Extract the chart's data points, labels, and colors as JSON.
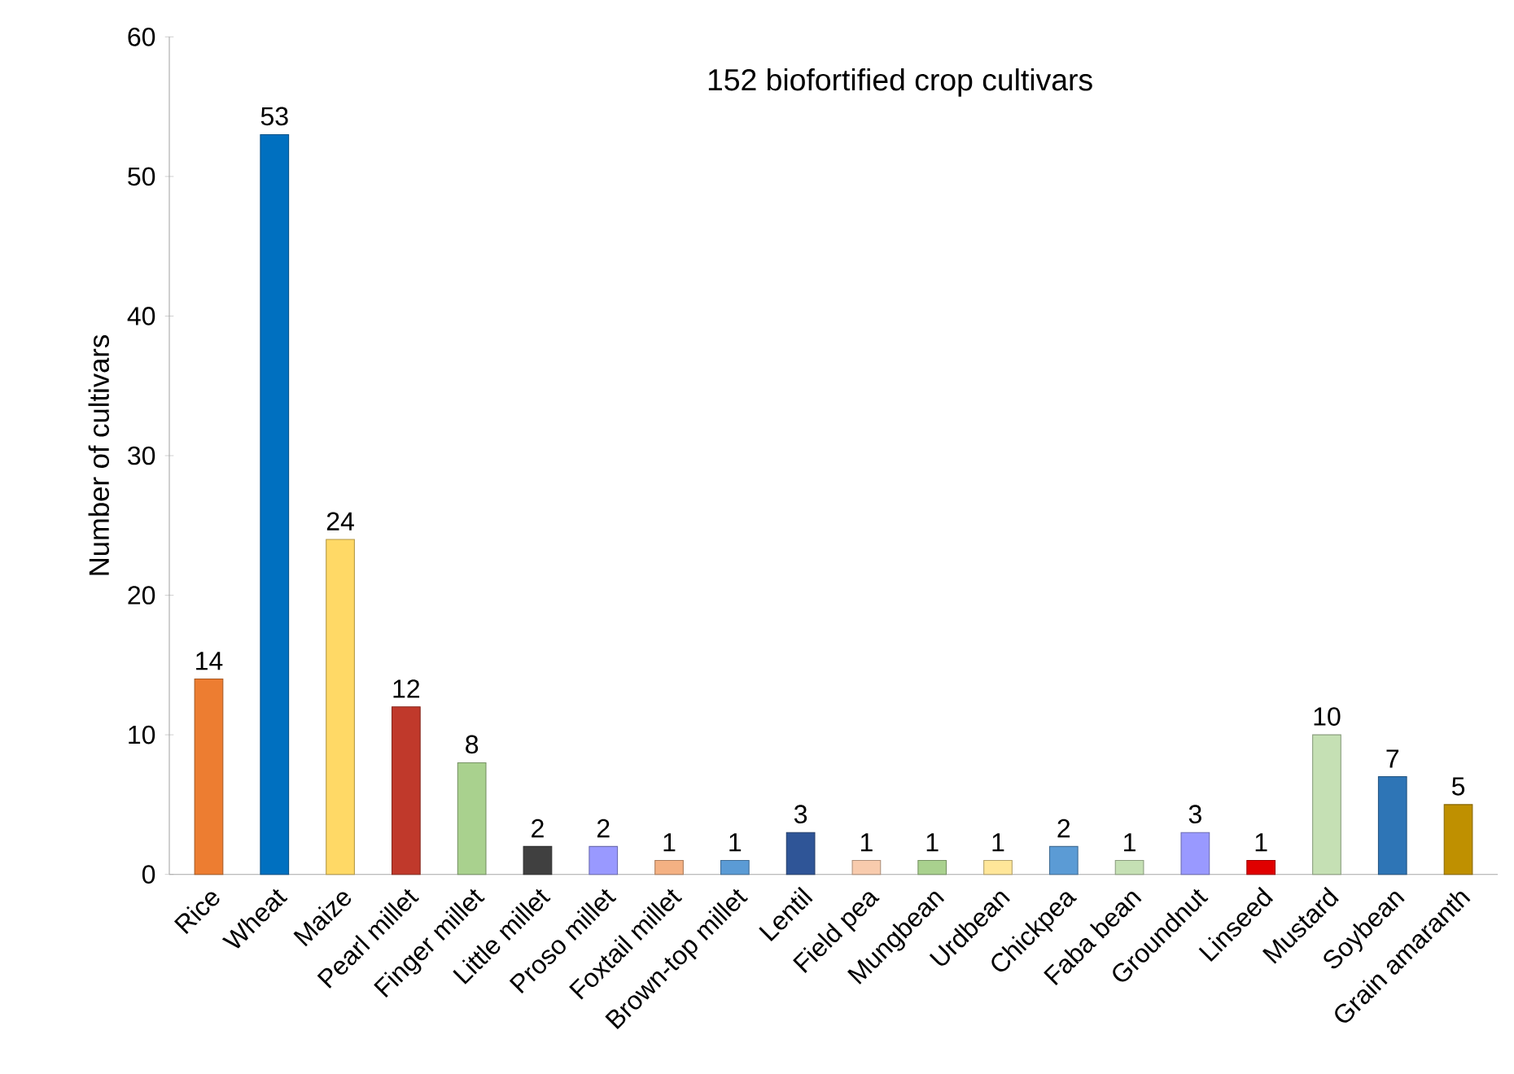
{
  "chart_data": {
    "type": "bar",
    "title": "152 biofortified crop cultivars",
    "ylabel": "Number of cultivars",
    "categories": [
      "Rice",
      "Wheat",
      "Maize",
      "Pearl millet",
      "Finger millet",
      "Little millet",
      "Proso millet",
      "Foxtail millet",
      "Brown-top millet",
      "Lentil",
      "Field pea",
      "Mungbean",
      "Urdbean",
      "Chickpea",
      "Faba bean",
      "Groundnut",
      "Linseed",
      "Mustard",
      "Soybean",
      "Grain amaranth"
    ],
    "values": [
      14,
      53,
      24,
      12,
      8,
      2,
      2,
      1,
      1,
      3,
      1,
      1,
      1,
      2,
      1,
      3,
      1,
      10,
      7,
      5
    ],
    "colors": [
      "#ed7d31",
      "#0070c0",
      "#ffd966",
      "#c0392b",
      "#a9d18e",
      "#404040",
      "#9999ff",
      "#f4b183",
      "#5b9bd5",
      "#2f5597",
      "#f8cbad",
      "#a9d18e",
      "#ffe699",
      "#5b9bd5",
      "#c5e0b4",
      "#9999ff",
      "#e00000",
      "#c5e0b4",
      "#2e75b6",
      "#bf9000"
    ],
    "ylim": [
      0,
      60
    ],
    "yticks": [
      0,
      10,
      20,
      30,
      40,
      50,
      60
    ],
    "data_labels": true
  }
}
